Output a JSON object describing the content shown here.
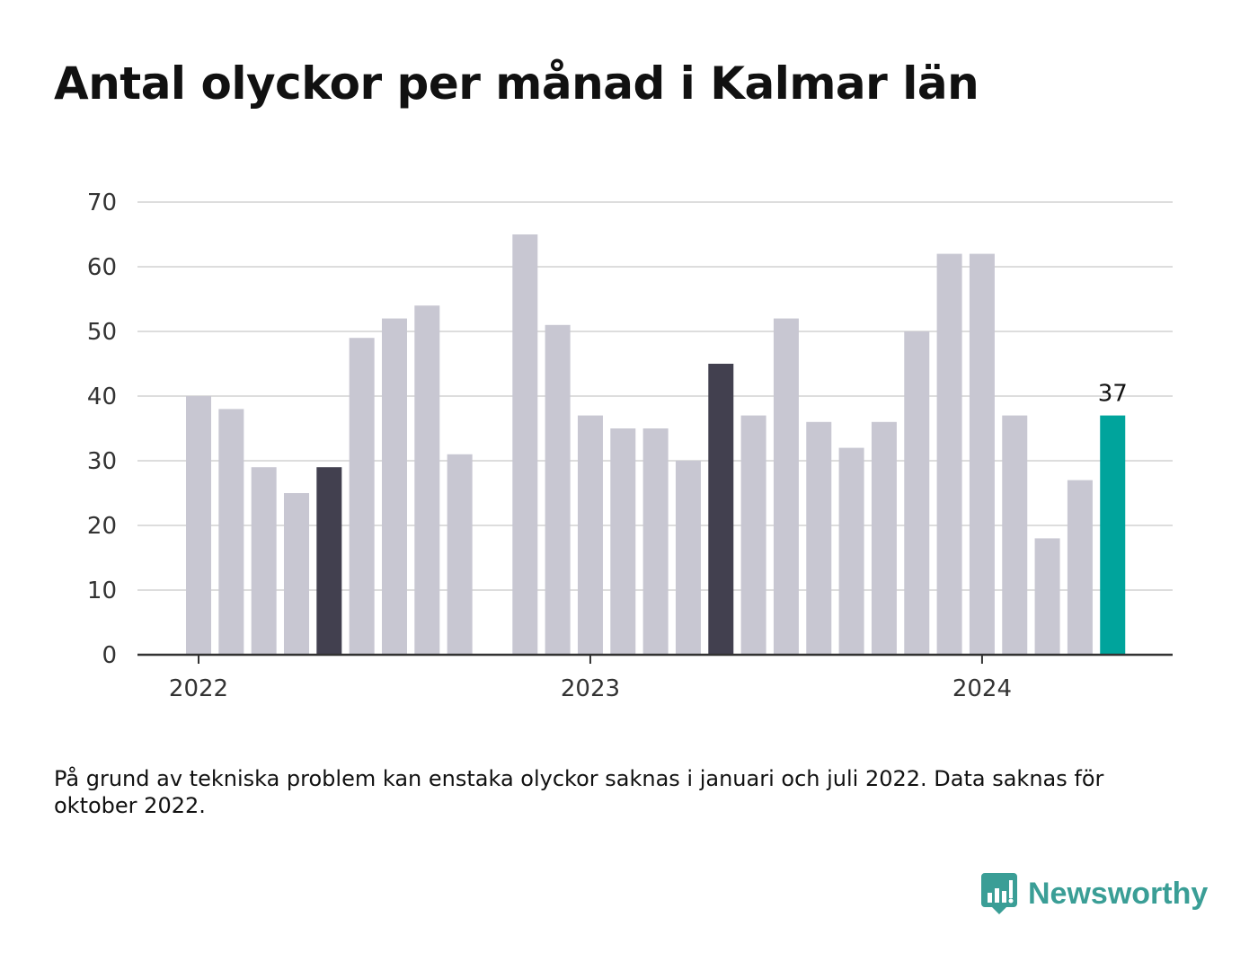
{
  "title": "Antal olyckor per månad i Kalmar län",
  "footnote": "På grund av tekniska problem kan enstaka olyckor saknas i januari och juli 2022. Data saknas för oktober 2022.",
  "brand": {
    "name": "Newsworthy",
    "icon": "newsworthy-logo-icon",
    "color": "#3a9e96"
  },
  "colors": {
    "default_bar": "#c8c7d2",
    "highlight_bar": "#42404f",
    "latest_bar": "#00a49c",
    "grid": "#dddddd",
    "axis": "#333333"
  },
  "chart_data": {
    "type": "bar",
    "title": "Antal olyckor per månad i Kalmar län",
    "x_tick_labels": [
      "2022",
      "2023",
      "2024"
    ],
    "ylim": [
      0,
      70
    ],
    "yticks": [
      0,
      10,
      20,
      30,
      40,
      50,
      60,
      70
    ],
    "grid": true,
    "categories": [
      "2022-01",
      "2022-02",
      "2022-03",
      "2022-04",
      "2022-05",
      "2022-06",
      "2022-07",
      "2022-08",
      "2022-09",
      "2022-10",
      "2022-11",
      "2022-12",
      "2023-01",
      "2023-02",
      "2023-03",
      "2023-04",
      "2023-05",
      "2023-06",
      "2023-07",
      "2023-08",
      "2023-09",
      "2023-10",
      "2023-11",
      "2023-12",
      "2024-01",
      "2024-02",
      "2024-03",
      "2024-04",
      "2024-05"
    ],
    "values": [
      40,
      38,
      29,
      25,
      29,
      49,
      52,
      54,
      31,
      null,
      65,
      51,
      37,
      35,
      35,
      30,
      45,
      37,
      52,
      36,
      32,
      36,
      50,
      62,
      62,
      37,
      18,
      27,
      37
    ],
    "highlighted": [
      "2022-05",
      "2023-05"
    ],
    "latest": "2024-05",
    "annotations": [
      {
        "category": "2024-05",
        "text": "37"
      }
    ]
  }
}
